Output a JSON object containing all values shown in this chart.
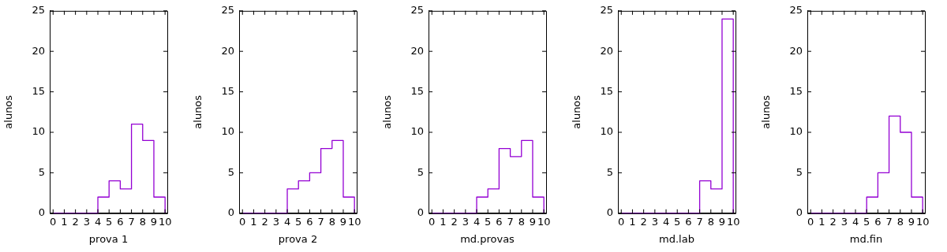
{
  "chart_data": [
    {
      "type": "histogram",
      "xlabel": "prova 1",
      "ylabel": "alunos",
      "bins": [
        0,
        1,
        2,
        3,
        4,
        5,
        6,
        7,
        8,
        9,
        10
      ],
      "values": [
        0,
        0,
        0,
        0,
        2,
        4,
        3,
        11,
        9,
        2
      ],
      "color": "#9400d3",
      "xlim": [
        -0.3,
        10.2
      ],
      "xticks": [
        0,
        1,
        2,
        3,
        4,
        5,
        6,
        7,
        8,
        9,
        10
      ],
      "ylim": [
        0,
        25
      ],
      "yticks": [
        0,
        5,
        10,
        15,
        20,
        25
      ],
      "grid": false,
      "legend": false
    },
    {
      "type": "histogram",
      "xlabel": "prova 2",
      "ylabel": "alunos",
      "bins": [
        0,
        1,
        2,
        3,
        4,
        5,
        6,
        7,
        8,
        9,
        10
      ],
      "values": [
        0,
        0,
        0,
        0,
        3,
        4,
        5,
        8,
        9,
        2
      ],
      "color": "#9400d3",
      "xlim": [
        -0.3,
        10.2
      ],
      "xticks": [
        0,
        1,
        2,
        3,
        4,
        5,
        6,
        7,
        8,
        9,
        10
      ],
      "ylim": [
        0,
        25
      ],
      "yticks": [
        0,
        5,
        10,
        15,
        20,
        25
      ],
      "grid": false,
      "legend": false
    },
    {
      "type": "histogram",
      "xlabel": "md.provas",
      "ylabel": "alunos",
      "bins": [
        0,
        1,
        2,
        3,
        4,
        5,
        6,
        7,
        8,
        9,
        10
      ],
      "values": [
        0,
        0,
        0,
        0,
        2,
        3,
        8,
        7,
        9,
        2
      ],
      "color": "#9400d3",
      "xlim": [
        -0.3,
        10.2
      ],
      "xticks": [
        0,
        1,
        2,
        3,
        4,
        5,
        6,
        7,
        8,
        9,
        10
      ],
      "ylim": [
        0,
        25
      ],
      "yticks": [
        0,
        5,
        10,
        15,
        20,
        25
      ],
      "grid": false,
      "legend": false
    },
    {
      "type": "histogram",
      "xlabel": "md.lab",
      "ylabel": "alunos",
      "bins": [
        0,
        1,
        2,
        3,
        4,
        5,
        6,
        7,
        8,
        9,
        10
      ],
      "values": [
        0,
        0,
        0,
        0,
        0,
        0,
        0,
        4,
        3,
        24
      ],
      "color": "#9400d3",
      "xlim": [
        -0.3,
        10.2
      ],
      "xticks": [
        0,
        1,
        2,
        3,
        4,
        5,
        6,
        7,
        8,
        9,
        10
      ],
      "ylim": [
        0,
        25
      ],
      "yticks": [
        0,
        5,
        10,
        15,
        20,
        25
      ],
      "grid": false,
      "legend": false
    },
    {
      "type": "histogram",
      "xlabel": "md.fin",
      "ylabel": "alunos",
      "bins": [
        0,
        1,
        2,
        3,
        4,
        5,
        6,
        7,
        8,
        9,
        10
      ],
      "values": [
        0,
        0,
        0,
        0,
        0,
        2,
        5,
        12,
        10,
        2
      ],
      "color": "#9400d3",
      "xlim": [
        -0.3,
        10.2
      ],
      "xticks": [
        0,
        1,
        2,
        3,
        4,
        5,
        6,
        7,
        8,
        9,
        10
      ],
      "ylim": [
        0,
        25
      ],
      "yticks": [
        0,
        5,
        10,
        15,
        20,
        25
      ],
      "grid": false,
      "legend": false
    }
  ]
}
